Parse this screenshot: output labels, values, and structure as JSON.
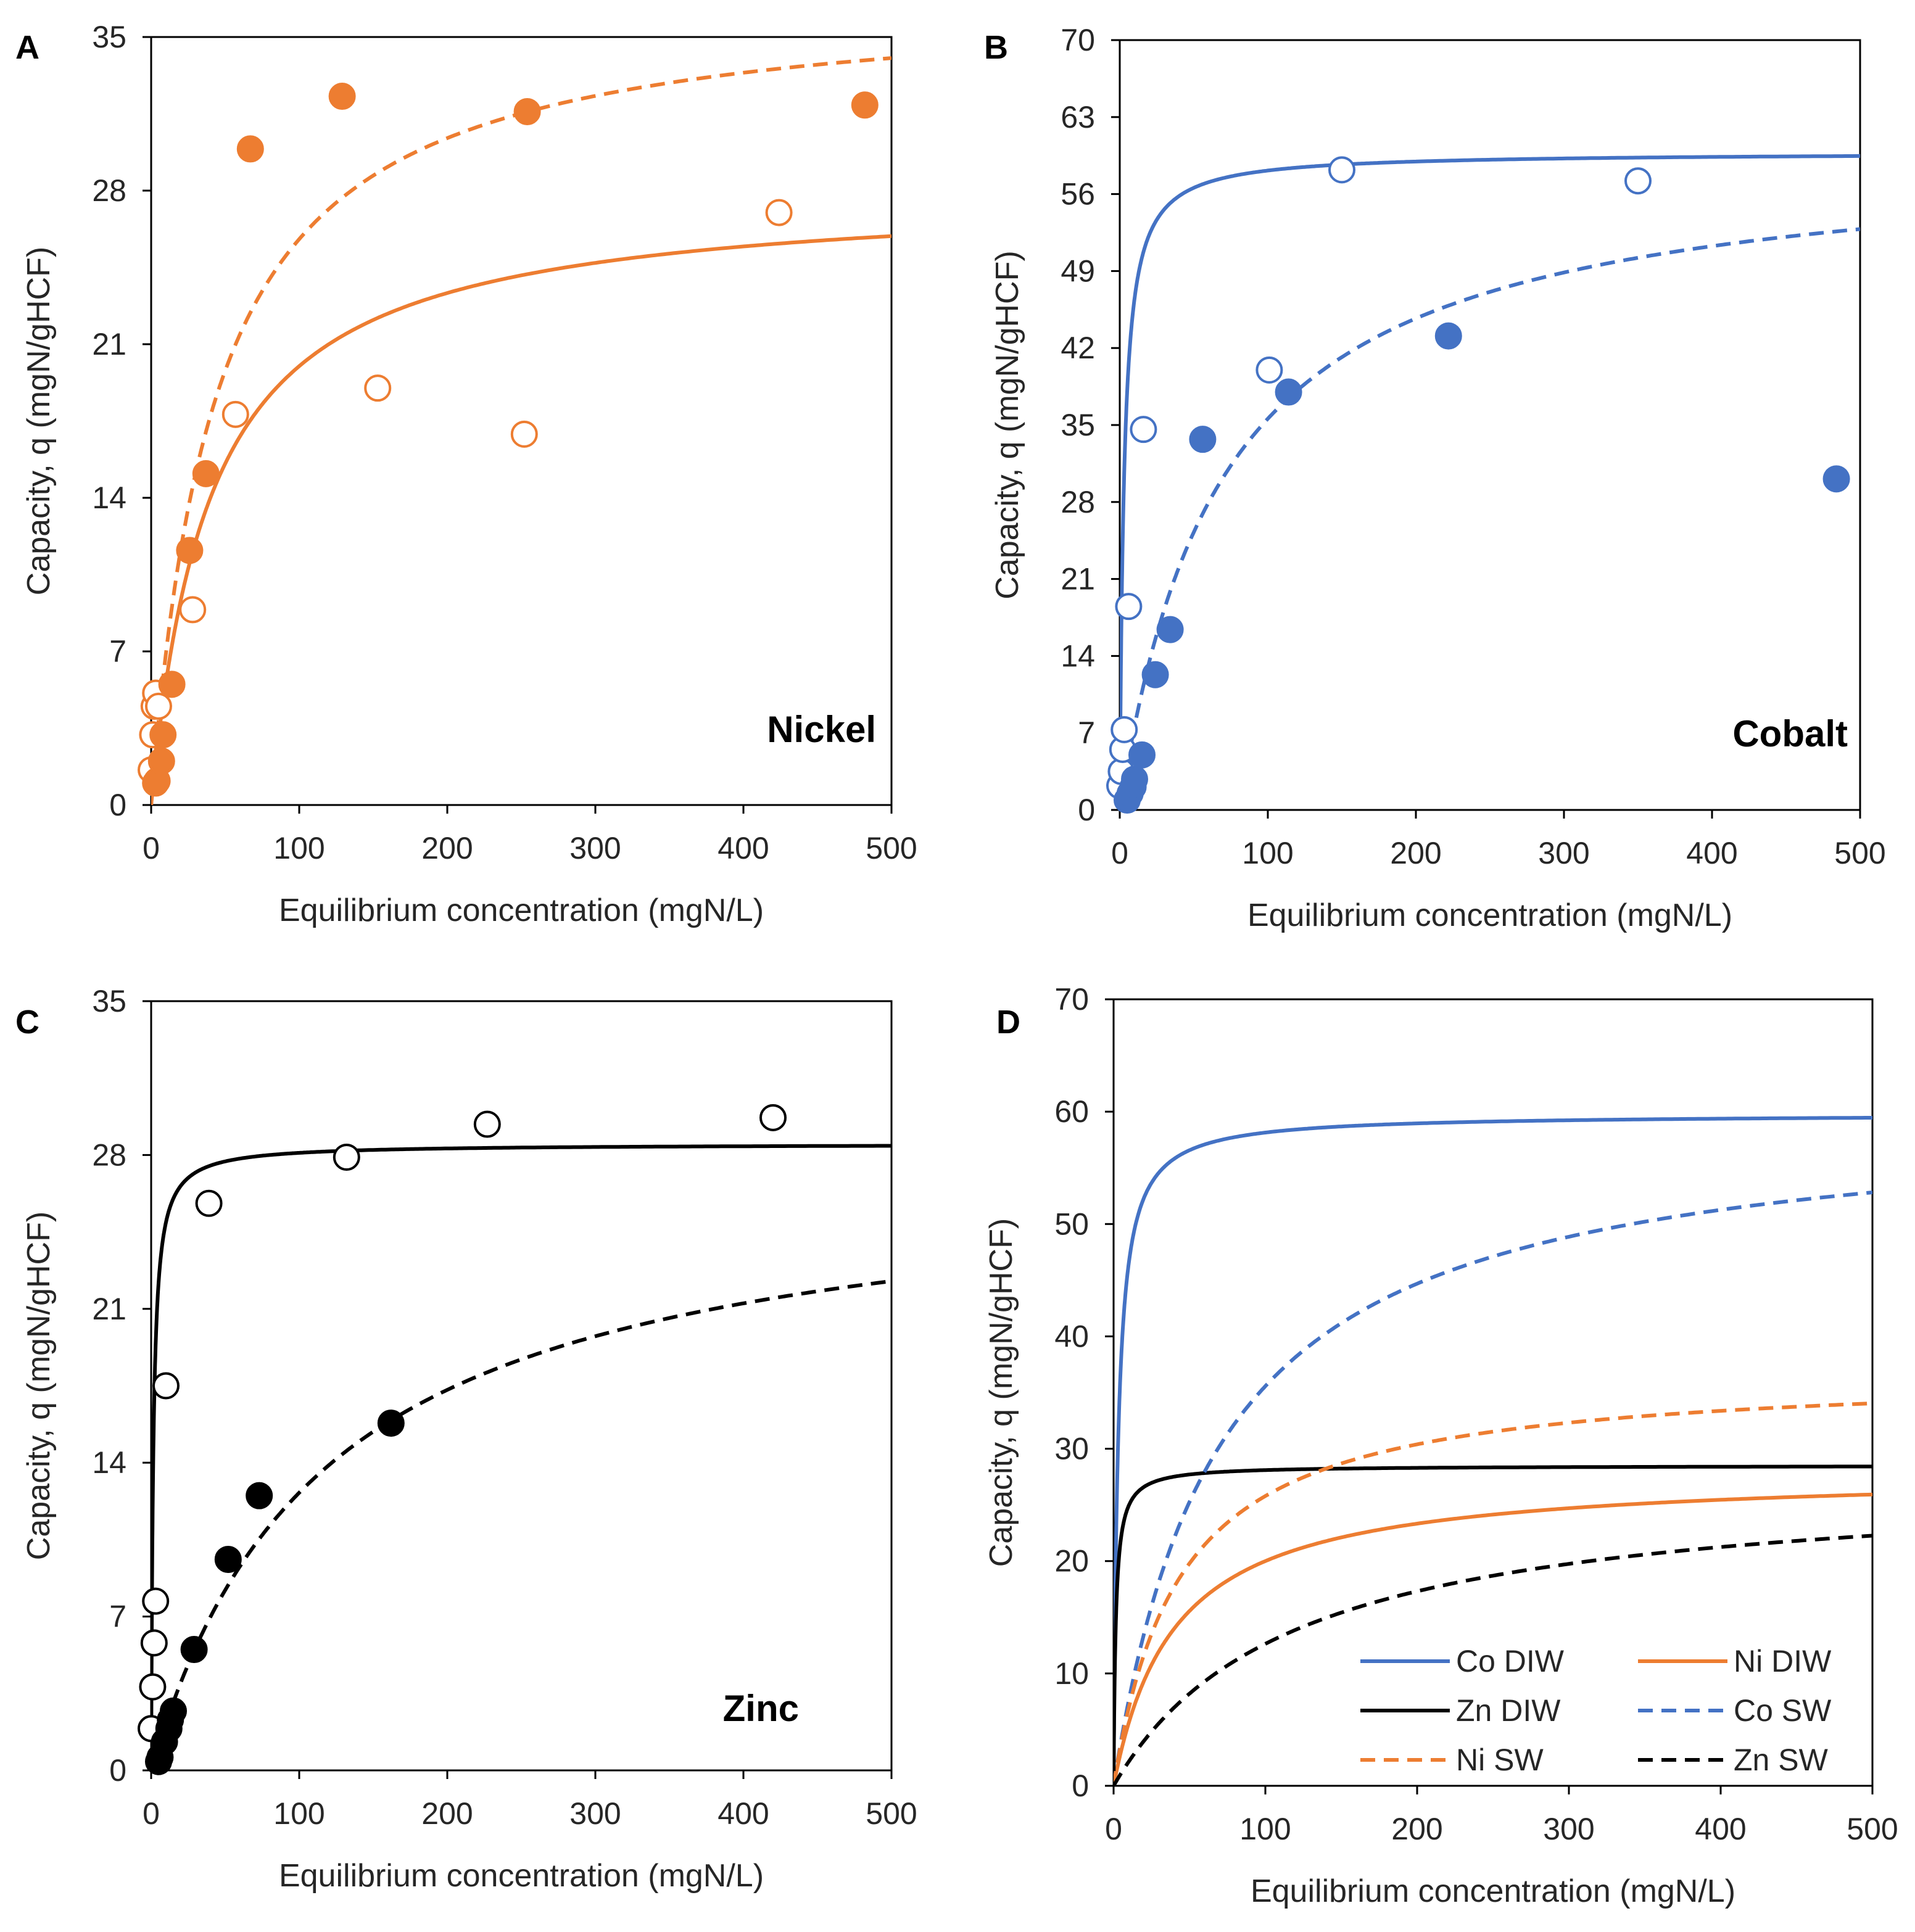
{
  "colors": {
    "nickel": "#ED7D31",
    "cobalt": "#4472C4",
    "zinc": "#000000"
  },
  "chart_data": [
    {
      "panel": "A",
      "type": "scatter",
      "annotation": "Nickel",
      "xlabel": "Equilibrium concentration (mgN/L)",
      "ylabel": "Capacity, q (mgN/gHCF)",
      "xlim": [
        0,
        500
      ],
      "ylim": [
        0,
        35
      ],
      "xticks": [
        "0",
        "100",
        "200",
        "300",
        "400",
        "500"
      ],
      "yticks": [
        "0",
        "7",
        "14",
        "21",
        "28",
        "35"
      ],
      "grid": false,
      "legend": "none",
      "series": [
        {
          "kind": "points",
          "style": "open",
          "color": "#ED7D31",
          "x": [
            0,
            1,
            2,
            3,
            5,
            28,
            57,
            153,
            252,
            424
          ],
          "y": [
            1.6,
            3.2,
            4.5,
            5.1,
            4.5,
            8.9,
            17.8,
            19.0,
            16.9,
            27.0
          ]
        },
        {
          "kind": "points",
          "style": "filled",
          "color": "#ED7D31",
          "x": [
            3,
            4,
            7,
            8,
            14,
            26,
            37,
            67,
            129,
            254,
            482
          ],
          "y": [
            1.0,
            1.1,
            2.0,
            3.2,
            5.5,
            11.6,
            15.1,
            29.9,
            32.3,
            31.6,
            31.9
          ]
        },
        {
          "kind": "curve",
          "style": "solid",
          "color": "#ED7D31",
          "qmax": 28,
          "k": 0.025
        },
        {
          "kind": "curve",
          "style": "dashed",
          "color": "#ED7D31",
          "qmax": 37,
          "k": 0.023
        }
      ]
    },
    {
      "panel": "B",
      "type": "scatter",
      "annotation": "Cobalt",
      "xlabel": "Equilibrium concentration (mgN/L)",
      "ylabel": "Capacity, q (mgN/gHCF)",
      "xlim": [
        0,
        500
      ],
      "ylim": [
        0,
        70
      ],
      "xticks": [
        "0",
        "100",
        "200",
        "300",
        "400",
        "500"
      ],
      "yticks": [
        "0",
        "7",
        "14",
        "21",
        "28",
        "35",
        "42",
        "49",
        "56",
        "63",
        "70"
      ],
      "grid": false,
      "legend": "none",
      "series": [
        {
          "kind": "points",
          "style": "open",
          "color": "#4472C4",
          "x": [
            0,
            1,
            2,
            3,
            6,
            16,
            101,
            150,
            350
          ],
          "y": [
            2.2,
            3.5,
            5.5,
            7.3,
            18.5,
            34.6,
            40.0,
            58.2,
            57.2
          ]
        },
        {
          "kind": "points",
          "style": "filled",
          "color": "#4472C4",
          "x": [
            5,
            7,
            9,
            10,
            15,
            24,
            34,
            56,
            114,
            222,
            484
          ],
          "y": [
            0.9,
            1.5,
            2.1,
            2.8,
            5.0,
            12.3,
            16.4,
            33.7,
            38.0,
            43.1,
            30.1
          ]
        },
        {
          "kind": "curve",
          "style": "solid",
          "color": "#4472C4",
          "qmax": 59.8,
          "k": 0.35
        },
        {
          "kind": "curve",
          "style": "dashed",
          "color": "#4472C4",
          "qmax": 60.1,
          "k": 0.0145
        }
      ]
    },
    {
      "panel": "C",
      "type": "scatter",
      "annotation": "Zinc",
      "xlabel": "Equilibrium concentration (mgN/L)",
      "ylabel": "Capacity, q (mgN/gHCF)",
      "xlim": [
        0,
        500
      ],
      "ylim": [
        0,
        35
      ],
      "xticks": [
        "0",
        "100",
        "200",
        "300",
        "400",
        "500"
      ],
      "yticks": [
        "0",
        "7",
        "14",
        "21",
        "28",
        "35"
      ],
      "grid": false,
      "legend": "none",
      "series": [
        {
          "kind": "points",
          "style": "open",
          "color": "#000000",
          "x": [
            0,
            1,
            2,
            3,
            10,
            39,
            132,
            227,
            420
          ],
          "y": [
            1.9,
            3.8,
            5.8,
            7.7,
            17.5,
            25.8,
            27.9,
            29.4,
            29.7
          ]
        },
        {
          "kind": "points",
          "style": "filled",
          "color": "#000000",
          "x": [
            5,
            6,
            9,
            12,
            13,
            15,
            29,
            52,
            73,
            162
          ],
          "y": [
            0.4,
            0.6,
            1.3,
            1.9,
            2.3,
            2.7,
            5.5,
            9.6,
            12.5,
            15.8
          ]
        },
        {
          "kind": "curve",
          "style": "solid",
          "color": "#000000",
          "qmax": 28.5,
          "k": 0.7
        },
        {
          "kind": "curve",
          "style": "dashed",
          "color": "#000000",
          "qmax": 27.5,
          "k": 0.0085
        }
      ]
    },
    {
      "panel": "D",
      "type": "line",
      "xlabel": "Equilibrium concentration (mgN/L)",
      "ylabel": "Capacity, q (mgN/gHCF)",
      "xlim": [
        0,
        500
      ],
      "ylim": [
        0,
        70
      ],
      "xticks": [
        "0",
        "100",
        "200",
        "300",
        "400",
        "500"
      ],
      "yticks": [
        "0",
        "10",
        "20",
        "30",
        "40",
        "50",
        "60",
        "70"
      ],
      "grid": false,
      "legend": "bottom-right",
      "series": [
        {
          "name": "Co DIW",
          "kind": "curve",
          "style": "solid",
          "color": "#4472C4",
          "qmax": 59.8,
          "k": 0.35
        },
        {
          "name": "Ni DIW",
          "kind": "curve",
          "style": "solid",
          "color": "#ED7D31",
          "qmax": 28,
          "k": 0.025
        },
        {
          "name": "Zn DIW",
          "kind": "curve",
          "style": "solid",
          "color": "#000000",
          "qmax": 28.5,
          "k": 0.7
        },
        {
          "name": "Co SW",
          "kind": "curve",
          "style": "dashed",
          "color": "#4472C4",
          "qmax": 60.1,
          "k": 0.0145
        },
        {
          "name": "Ni SW",
          "kind": "curve",
          "style": "dashed",
          "color": "#ED7D31",
          "qmax": 37,
          "k": 0.023
        },
        {
          "name": "Zn SW",
          "kind": "curve",
          "style": "dashed",
          "color": "#000000",
          "qmax": 27.5,
          "k": 0.0085
        }
      ]
    }
  ]
}
